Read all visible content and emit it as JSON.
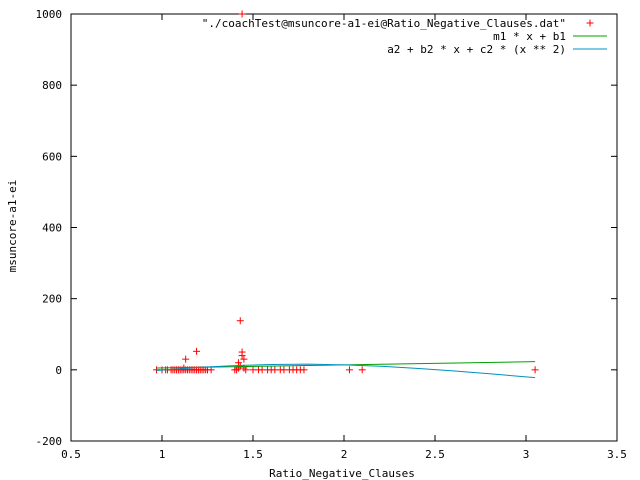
{
  "chart_data": {
    "type": "scatter",
    "title": "",
    "xlabel": "Ratio_Negative_Clauses",
    "ylabel": "msuncore-a1-ei",
    "xlim": [
      0.5,
      3.5
    ],
    "ylim": [
      -200,
      1000
    ],
    "xticks": [
      0.5,
      1,
      1.5,
      2,
      2.5,
      3,
      3.5
    ],
    "xtick_labels": [
      "0.5",
      "1",
      "1.5",
      "2",
      "2.5",
      "3",
      "3.5"
    ],
    "yticks": [
      -200,
      0,
      200,
      400,
      600,
      800,
      1000
    ],
    "ytick_labels": [
      "-200",
      "0",
      "200",
      "400",
      "600",
      "800",
      "1000"
    ],
    "grid": false,
    "legend_position": "top-right",
    "colors": {
      "points": "#ff0000",
      "linear_fit": "#00a000",
      "quadratic_fit": "#0090c0",
      "axes": "#000000"
    },
    "series": [
      {
        "name": "\"./coachTest@msuncore-a1-ei@Ratio_Negative_Clauses.dat\"",
        "kind": "points",
        "marker": "plus",
        "x": [
          0.97,
          1.0,
          1.02,
          1.03,
          1.05,
          1.06,
          1.07,
          1.08,
          1.09,
          1.1,
          1.11,
          1.12,
          1.13,
          1.14,
          1.15,
          1.16,
          1.17,
          1.18,
          1.19,
          1.2,
          1.21,
          1.22,
          1.23,
          1.24,
          1.25,
          1.27,
          1.13,
          1.19,
          1.12,
          1.4,
          1.41,
          1.42,
          1.43,
          1.42,
          1.43,
          1.44,
          1.44,
          1.45,
          1.44,
          1.45,
          1.46,
          1.5,
          1.53,
          1.55,
          1.58,
          1.6,
          1.62,
          1.65,
          1.67,
          1.7,
          1.72,
          1.74,
          1.76,
          1.78,
          2.03,
          2.1,
          3.05
        ],
        "y": [
          0,
          0,
          0,
          0,
          0,
          0,
          0,
          0,
          0,
          0,
          0,
          0,
          0,
          0,
          0,
          0,
          0,
          0,
          0,
          0,
          0,
          0,
          0,
          0,
          0,
          0,
          30,
          52,
          5,
          0,
          0,
          5,
          138,
          20,
          10,
          50,
          40,
          30,
          1000,
          5,
          0,
          0,
          0,
          0,
          0,
          0,
          0,
          0,
          0,
          0,
          0,
          0,
          0,
          0,
          0,
          0,
          0
        ]
      },
      {
        "name": "m1 * x + b1",
        "kind": "line",
        "x": [
          0.97,
          3.05
        ],
        "y": [
          5,
          23
        ]
      },
      {
        "name": "a2 + b2 * x + c2 * (x ** 2)",
        "kind": "line",
        "x": [
          0.97,
          1.2,
          1.4,
          1.6,
          1.8,
          2.0,
          2.2,
          2.4,
          2.6,
          2.8,
          3.05
        ],
        "y": [
          -2,
          7,
          12,
          15,
          16,
          14,
          10,
          4,
          -3,
          -11,
          -22
        ]
      }
    ]
  }
}
